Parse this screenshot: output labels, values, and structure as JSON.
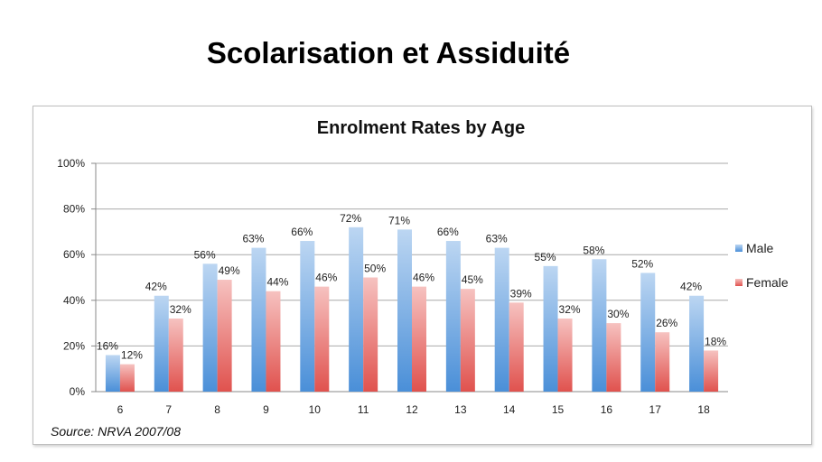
{
  "page": {
    "title": "Scolarisation et Assiduité"
  },
  "chart_data": {
    "type": "bar",
    "title": "Enrolment Rates by Age",
    "xlabel": "",
    "ylabel": "",
    "categories": [
      "6",
      "7",
      "8",
      "9",
      "10",
      "11",
      "12",
      "13",
      "14",
      "15",
      "16",
      "17",
      "18"
    ],
    "series": [
      {
        "name": "Male",
        "values": [
          16,
          42,
          56,
          63,
          66,
          72,
          71,
          66,
          63,
          55,
          58,
          52,
          42
        ],
        "labels": [
          "16%",
          "42%",
          "56%",
          "63%",
          "66%",
          "72%",
          "71%",
          "66%",
          "63%",
          "55%",
          "58%",
          "52%",
          "42%"
        ],
        "color": "#5b9bd5"
      },
      {
        "name": "Female",
        "values": [
          12,
          32,
          49,
          44,
          46,
          50,
          46,
          45,
          39,
          32,
          30,
          26,
          18
        ],
        "labels": [
          "12%",
          "32%",
          "49%",
          "44%",
          "46%",
          "50%",
          "46%",
          "45%",
          "39%",
          "32%",
          "30%",
          "26%",
          "18%"
        ],
        "color": "#e46c6a"
      }
    ],
    "ylim": [
      0,
      100
    ],
    "yticks": [
      "0%",
      "20%",
      "40%",
      "60%",
      "80%",
      "100%"
    ],
    "grid": true,
    "legend": "right",
    "source": "Source: NRVA 2007/08"
  }
}
